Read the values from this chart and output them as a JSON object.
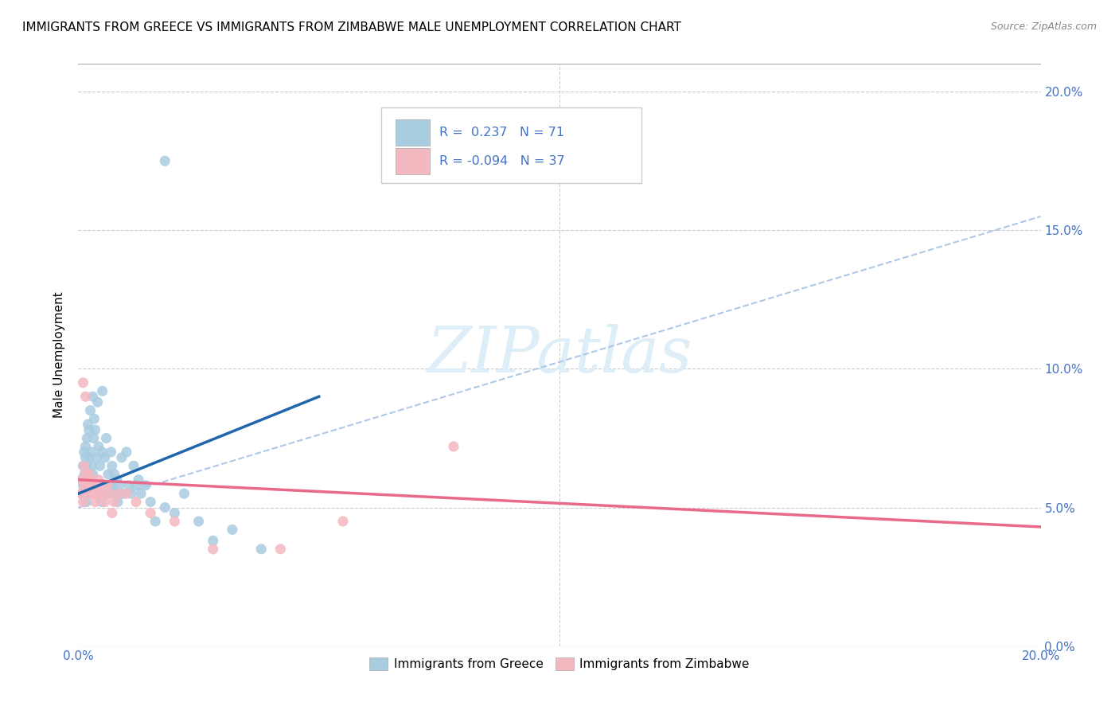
{
  "title": "IMMIGRANTS FROM GREECE VS IMMIGRANTS FROM ZIMBABWE MALE UNEMPLOYMENT CORRELATION CHART",
  "source": "Source: ZipAtlas.com",
  "ylabel": "Male Unemployment",
  "ytick_vals": [
    0,
    5,
    10,
    15,
    20
  ],
  "ytick_labels": [
    "0.0%",
    "5.0%",
    "10.0%",
    "15.0%",
    "20.0%"
  ],
  "xlim": [
    0,
    20
  ],
  "ylim": [
    0,
    21
  ],
  "color_greece": "#a8cce0",
  "color_zimbabwe": "#f4b8c1",
  "color_trendline_greece": "#2166ac",
  "color_trendline_zimbabwe": "#e8698a",
  "color_dashed": "#b0c8e8",
  "color_axis_labels": "#4472c4",
  "watermark_color": "#ddeef8",
  "legend_label1": "R =  0.237   N = 71",
  "legend_label2": "R = -0.094   N = 37",
  "greece_trendline": [
    0,
    5.5,
    5.0,
    9.0
  ],
  "zimbabwe_trendline": [
    0,
    6.0,
    20,
    4.3
  ],
  "dashed_line": [
    0,
    5.0,
    20,
    15.5
  ],
  "greece_points_x": [
    0.05,
    0.08,
    0.1,
    0.1,
    0.12,
    0.12,
    0.13,
    0.14,
    0.15,
    0.15,
    0.16,
    0.17,
    0.18,
    0.18,
    0.19,
    0.2,
    0.2,
    0.22,
    0.23,
    0.25,
    0.25,
    0.27,
    0.28,
    0.3,
    0.3,
    0.32,
    0.33,
    0.35,
    0.35,
    0.38,
    0.4,
    0.4,
    0.42,
    0.45,
    0.48,
    0.5,
    0.5,
    0.55,
    0.58,
    0.6,
    0.62,
    0.65,
    0.68,
    0.7,
    0.72,
    0.75,
    0.78,
    0.8,
    0.82,
    0.85,
    0.88,
    0.9,
    0.95,
    1.0,
    1.05,
    1.1,
    1.15,
    1.2,
    1.25,
    1.3,
    1.4,
    1.5,
    1.6,
    1.8,
    2.0,
    2.2,
    2.5,
    2.8,
    3.2,
    3.8,
    1.8
  ],
  "greece_points_y": [
    6.0,
    5.5,
    5.8,
    6.5,
    5.5,
    7.0,
    6.2,
    5.8,
    6.8,
    7.2,
    5.2,
    6.5,
    5.5,
    7.5,
    5.8,
    6.0,
    8.0,
    7.8,
    6.8,
    5.5,
    8.5,
    7.0,
    6.5,
    6.2,
    9.0,
    7.5,
    8.2,
    5.8,
    7.8,
    6.8,
    5.5,
    8.8,
    7.2,
    6.5,
    5.2,
    7.0,
    9.2,
    6.8,
    7.5,
    5.5,
    6.2,
    5.8,
    7.0,
    6.5,
    5.8,
    6.2,
    5.5,
    6.0,
    5.2,
    5.8,
    5.5,
    6.8,
    5.5,
    7.0,
    5.8,
    5.5,
    6.5,
    5.8,
    6.0,
    5.5,
    5.8,
    5.2,
    4.5,
    5.0,
    4.8,
    5.5,
    4.5,
    3.8,
    4.2,
    3.5,
    17.5
  ],
  "zimbabwe_points_x": [
    0.05,
    0.08,
    0.1,
    0.1,
    0.12,
    0.13,
    0.15,
    0.15,
    0.17,
    0.18,
    0.2,
    0.22,
    0.25,
    0.28,
    0.3,
    0.32,
    0.35,
    0.38,
    0.4,
    0.42,
    0.45,
    0.5,
    0.55,
    0.6,
    0.65,
    0.7,
    0.75,
    0.85,
    1.0,
    1.2,
    1.5,
    2.0,
    2.8,
    4.2,
    5.5,
    7.8,
    0.45
  ],
  "zimbabwe_points_y": [
    5.5,
    6.0,
    5.2,
    9.5,
    6.5,
    5.8,
    6.2,
    9.0,
    6.0,
    5.5,
    5.8,
    6.2,
    5.5,
    6.0,
    5.8,
    5.5,
    5.2,
    5.8,
    5.5,
    6.0,
    5.8,
    5.5,
    5.2,
    5.8,
    5.5,
    4.8,
    5.2,
    5.5,
    5.5,
    5.2,
    4.8,
    4.5,
    3.5,
    3.5,
    4.5,
    7.2,
    5.5
  ]
}
